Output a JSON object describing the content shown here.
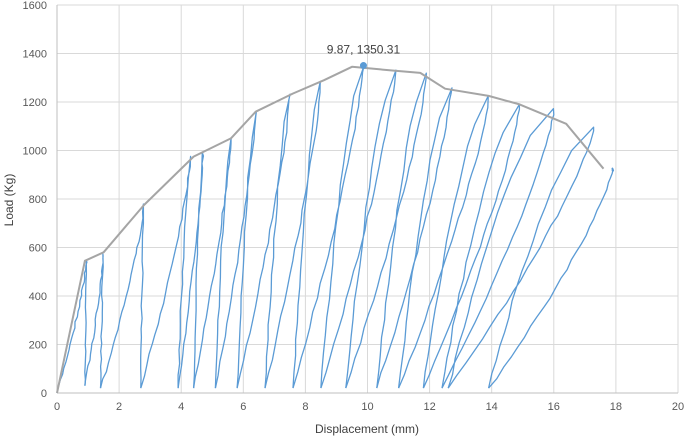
{
  "chart_data": {
    "type": "line",
    "title": "",
    "xlabel": "Displacement (mm)",
    "ylabel": "Load (Kg)",
    "xlim": [
      0,
      20
    ],
    "ylim": [
      0,
      1600
    ],
    "x_ticks": [
      0,
      2,
      4,
      6,
      8,
      10,
      12,
      14,
      16,
      18,
      20
    ],
    "y_ticks": [
      0,
      200,
      400,
      600,
      800,
      1000,
      1200,
      1400,
      1600
    ],
    "grid": true,
    "legend": "none",
    "annotation": {
      "text": "9.87, 1350.31",
      "x": 9.87,
      "y": 1350.31
    },
    "colors": {
      "cyclic": "#5b9bd5",
      "envelope": "#a5a5a5",
      "grid": "#d9d9d9",
      "axis": "#bfbfbf"
    },
    "series": [
      {
        "role": "envelope",
        "points": [
          [
            0,
            0
          ],
          [
            0.9,
            545
          ],
          [
            1.5,
            580
          ],
          [
            2.8,
            775
          ],
          [
            4.4,
            975
          ],
          [
            5.6,
            1050
          ],
          [
            6.4,
            1160
          ],
          [
            7.6,
            1235
          ],
          [
            8.6,
            1290
          ],
          [
            9.5,
            1345
          ],
          [
            10.8,
            1330
          ],
          [
            11.7,
            1320
          ],
          [
            12.5,
            1255
          ],
          [
            13.9,
            1225
          ],
          [
            14.9,
            1190
          ],
          [
            16.4,
            1110
          ],
          [
            17.6,
            925
          ]
        ]
      },
      {
        "role": "cyclic",
        "cycles": [
          {
            "start": [
              0,
              0
            ],
            "peak": [
              0.95,
              545
            ],
            "end": [
              0.9,
              30
            ]
          },
          {
            "start": [
              0.9,
              30
            ],
            "peak": [
              1.5,
              575
            ],
            "end": [
              1.4,
              20
            ]
          },
          {
            "start": [
              1.4,
              20
            ],
            "peak": [
              2.8,
              775
            ],
            "end": [
              2.7,
              20
            ]
          },
          {
            "start": [
              2.7,
              20
            ],
            "peak": [
              4.3,
              975
            ],
            "end": [
              3.9,
              20
            ]
          },
          {
            "start": [
              3.9,
              20
            ],
            "peak": [
              4.7,
              990
            ],
            "end": [
              4.4,
              20
            ]
          },
          {
            "start": [
              4.4,
              20
            ],
            "peak": [
              5.6,
              1050
            ],
            "end": [
              5.1,
              20
            ]
          },
          {
            "start": [
              5.1,
              20
            ],
            "peak": [
              6.4,
              1160
            ],
            "end": [
              5.8,
              20
            ]
          },
          {
            "start": [
              5.8,
              20
            ],
            "peak": [
              7.5,
              1230
            ],
            "end": [
              6.7,
              20
            ]
          },
          {
            "start": [
              6.7,
              20
            ],
            "peak": [
              8.5,
              1285
            ],
            "end": [
              7.6,
              20
            ]
          },
          {
            "start": [
              7.6,
              20
            ],
            "peak": [
              9.87,
              1350.31
            ],
            "end": [
              8.5,
              20
            ]
          },
          {
            "start": [
              8.5,
              20
            ],
            "peak": [
              10.9,
              1330
            ],
            "end": [
              9.3,
              20
            ]
          },
          {
            "start": [
              9.3,
              20
            ],
            "peak": [
              11.9,
              1320
            ],
            "end": [
              10.3,
              20
            ]
          },
          {
            "start": [
              10.3,
              20
            ],
            "peak": [
              12.7,
              1255
            ],
            "end": [
              11.0,
              20
            ]
          },
          {
            "start": [
              11.0,
              20
            ],
            "peak": [
              13.9,
              1225
            ],
            "end": [
              11.8,
              20
            ]
          },
          {
            "start": [
              11.8,
              20
            ],
            "peak": [
              14.9,
              1190
            ],
            "end": [
              12.4,
              20
            ]
          },
          {
            "start": [
              12.4,
              20
            ],
            "peak": [
              16.0,
              1170
            ],
            "end": [
              12.6,
              20
            ]
          },
          {
            "start": [
              12.6,
              20
            ],
            "peak": [
              17.3,
              1100
            ],
            "end": [
              13.9,
              20
            ]
          },
          {
            "start": [
              13.9,
              20
            ],
            "peak": [
              17.9,
              925
            ],
            "end": [
              17.9,
              920
            ]
          }
        ]
      }
    ]
  }
}
